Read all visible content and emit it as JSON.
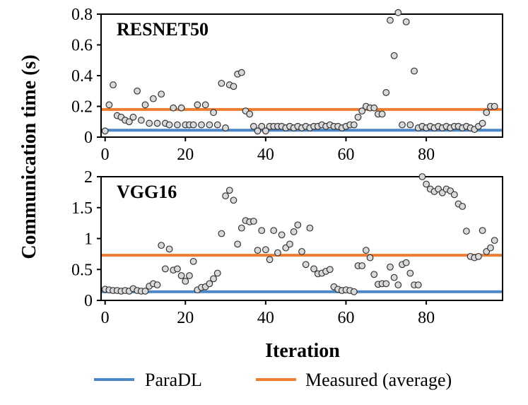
{
  "ylabel": "Communication time (s)",
  "xlabel": "Iteration",
  "colors": {
    "paradl": "#4a86c8",
    "measured": "#ed7d31",
    "marker_fill": "#d9d9d9",
    "marker_edge": "#333333"
  },
  "legend": [
    {
      "name": "ParaDL",
      "color": "#4a86c8"
    },
    {
      "name": "Measured (average)",
      "color": "#ed7d31"
    }
  ],
  "chart_data": [
    {
      "type": "scatter",
      "title": "RESNET50",
      "xlim": [
        -1,
        99
      ],
      "ylim": [
        0,
        0.8
      ],
      "yticks": [
        0,
        0.2,
        0.4,
        0.6,
        0.8
      ],
      "ytick_labels": [
        "0",
        "0.2",
        "0.4",
        "0.6",
        "0.8"
      ],
      "xticks": [
        0,
        20,
        40,
        60,
        80
      ],
      "xtick_labels": [
        "0",
        "20",
        "40",
        "60",
        "80"
      ],
      "paradl": 0.045,
      "measured_average": 0.18,
      "x": [
        0,
        1,
        2,
        3,
        4,
        5,
        6,
        7,
        8,
        9,
        10,
        11,
        12,
        13,
        14,
        15,
        16,
        17,
        18,
        19,
        20,
        21,
        22,
        23,
        24,
        25,
        26,
        27,
        28,
        29,
        30,
        31,
        32,
        33,
        34,
        35,
        36,
        37,
        38,
        39,
        40,
        41,
        42,
        43,
        44,
        45,
        46,
        47,
        48,
        49,
        50,
        51,
        52,
        53,
        54,
        55,
        56,
        57,
        58,
        59,
        60,
        61,
        62,
        63,
        64,
        65,
        66,
        67,
        68,
        69,
        70,
        71,
        72,
        73,
        74,
        75,
        76,
        77,
        78,
        79,
        80,
        81,
        82,
        83,
        84,
        85,
        86,
        87,
        88,
        89,
        90,
        91,
        92,
        93,
        94,
        95,
        96,
        97
      ],
      "y": [
        0.04,
        0.21,
        0.34,
        0.14,
        0.13,
        0.11,
        0.1,
        0.13,
        0.3,
        0.11,
        0.21,
        0.09,
        0.25,
        0.09,
        0.28,
        0.09,
        0.08,
        0.19,
        0.08,
        0.19,
        0.08,
        0.08,
        0.08,
        0.21,
        0.08,
        0.21,
        0.08,
        0.16,
        0.08,
        0.35,
        0.06,
        0.34,
        0.33,
        0.41,
        0.42,
        0.17,
        0.15,
        0.07,
        0.04,
        0.07,
        0.04,
        0.07,
        0.07,
        0.07,
        0.07,
        0.06,
        0.07,
        0.06,
        0.07,
        0.06,
        0.07,
        0.06,
        0.07,
        0.07,
        0.08,
        0.07,
        0.08,
        0.07,
        0.07,
        0.06,
        0.07,
        0.08,
        0.08,
        0.13,
        0.17,
        0.2,
        0.19,
        0.19,
        0.15,
        0.15,
        0.29,
        0.76,
        0.53,
        0.81,
        0.08,
        0.75,
        0.08,
        0.43,
        0.06,
        0.07,
        0.06,
        0.07,
        0.06,
        0.07,
        0.06,
        0.07,
        0.06,
        0.07,
        0.07,
        0.06,
        0.07,
        0.06,
        0.05,
        0.07,
        0.09,
        0.16,
        0.2,
        0.2
      ]
    },
    {
      "type": "scatter",
      "title": "VGG16",
      "xlim": [
        -1,
        99
      ],
      "ylim": [
        0,
        2
      ],
      "yticks": [
        0,
        0.5,
        1,
        1.5,
        2
      ],
      "ytick_labels": [
        "0",
        "0.5",
        "1",
        "1.5",
        "2"
      ],
      "xticks": [
        0,
        20,
        40,
        60,
        80
      ],
      "xtick_labels": [
        "0",
        "20",
        "40",
        "60",
        "80"
      ],
      "paradl": 0.14,
      "measured_average": 0.73,
      "x": [
        0,
        1,
        2,
        3,
        4,
        5,
        6,
        7,
        8,
        9,
        10,
        11,
        12,
        13,
        14,
        15,
        16,
        17,
        18,
        19,
        20,
        21,
        22,
        23,
        24,
        25,
        26,
        27,
        28,
        29,
        30,
        31,
        32,
        33,
        34,
        35,
        36,
        37,
        38,
        39,
        40,
        41,
        42,
        43,
        44,
        45,
        46,
        47,
        48,
        49,
        50,
        51,
        52,
        53,
        54,
        55,
        56,
        57,
        58,
        59,
        60,
        61,
        62,
        63,
        64,
        65,
        66,
        67,
        68,
        69,
        70,
        71,
        72,
        73,
        74,
        75,
        76,
        77,
        78,
        79,
        80,
        81,
        82,
        83,
        84,
        85,
        86,
        87,
        88,
        89,
        90,
        91,
        92,
        93,
        94,
        95,
        96,
        97
      ],
      "y": [
        0.18,
        0.17,
        0.16,
        0.16,
        0.15,
        0.16,
        0.15,
        0.19,
        0.16,
        0.15,
        0.15,
        0.23,
        0.27,
        0.25,
        0.89,
        0.51,
        0.83,
        0.49,
        0.51,
        0.4,
        0.31,
        0.4,
        0.63,
        0.17,
        0.21,
        0.22,
        0.27,
        0.35,
        0.44,
        1.08,
        1.69,
        1.78,
        1.62,
        0.91,
        1.17,
        1.29,
        1.27,
        1.28,
        0.81,
        1.13,
        0.82,
        0.66,
        1.13,
        0.77,
        1.06,
        0.85,
        0.91,
        1.11,
        1.22,
        0.79,
        0.58,
        1.17,
        0.51,
        0.43,
        0.44,
        0.47,
        0.5,
        0.22,
        0.18,
        0.16,
        0.17,
        0.16,
        0.14,
        0.56,
        0.56,
        0.81,
        0.69,
        0.42,
        0.26,
        0.27,
        0.27,
        0.54,
        0.37,
        0.25,
        0.58,
        0.61,
        0.44,
        0.25,
        0.25,
        2.0,
        1.88,
        1.8,
        1.76,
        1.8,
        1.74,
        1.8,
        1.77,
        1.71,
        1.56,
        1.52,
        1.12,
        0.71,
        0.69,
        0.71,
        1.13,
        0.79,
        0.85,
        0.97
      ]
    }
  ]
}
